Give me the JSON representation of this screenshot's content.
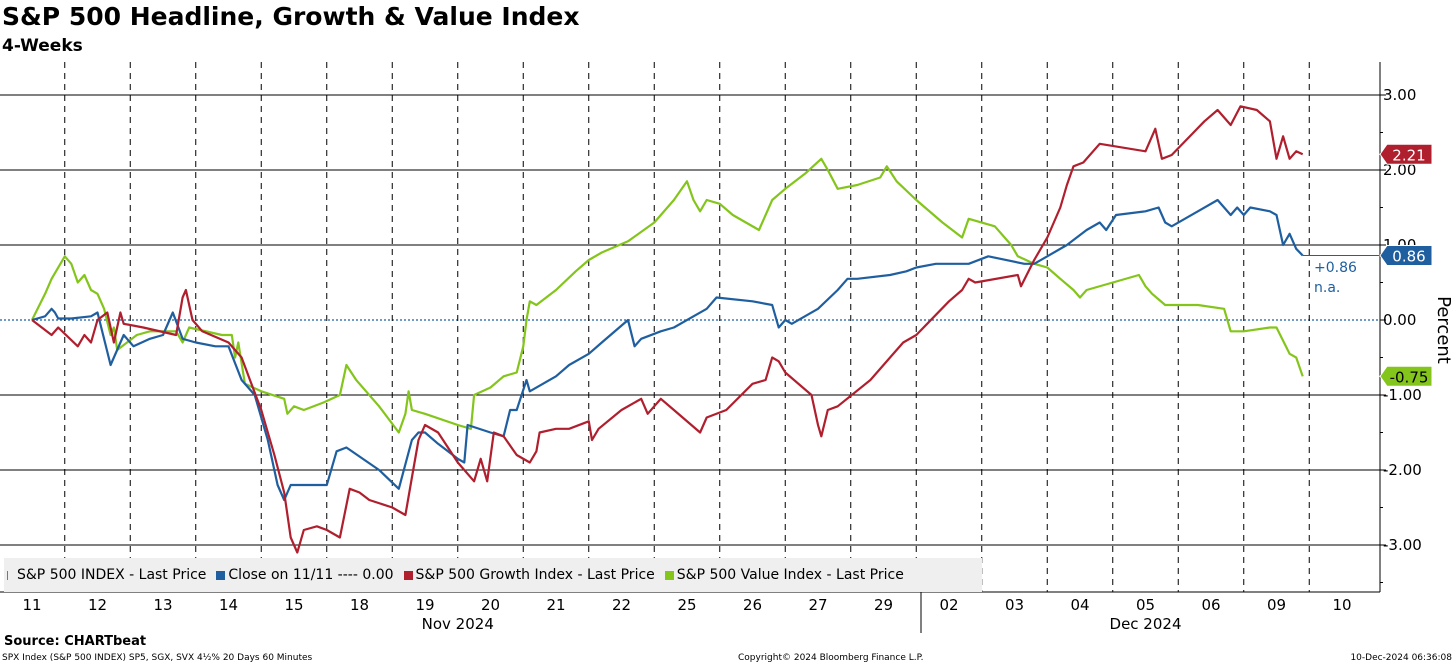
{
  "chart_data": {
    "type": "line",
    "title": "S&P 500 Headline, Growth & Value Index",
    "subtitle": "4-Weeks",
    "ylabel": "Percent",
    "ylim": [
      -3.5,
      3.4
    ],
    "yticks": [
      "3.00",
      "2.00",
      "1.00",
      "0.00",
      "-1.00",
      "-2.00",
      "-3.00"
    ],
    "ytick_values": [
      3,
      2,
      1,
      0,
      -1,
      -2,
      -3
    ],
    "x_days": [
      "11",
      "12",
      "13",
      "14",
      "15",
      "18",
      "19",
      "20",
      "21",
      "22",
      "25",
      "26",
      "27",
      "29",
      "02",
      "03",
      "04",
      "05",
      "06",
      "09",
      "10"
    ],
    "x_months": [
      {
        "label": "Nov 2024",
        "start": 0,
        "end": 13
      },
      {
        "label": "Dec 2024",
        "start": 14,
        "end": 20
      }
    ],
    "series": [
      {
        "name": "S&P 500 INDEX",
        "color": "#1f5fa0",
        "last": "0.86",
        "points": [
          [
            0,
            0
          ],
          [
            0.2,
            0.05
          ],
          [
            0.3,
            0.15
          ],
          [
            0.35,
            0.1
          ],
          [
            0.4,
            0.02
          ],
          [
            0.6,
            0.02
          ],
          [
            0.9,
            0.05
          ],
          [
            1,
            0.1
          ],
          [
            1.2,
            -0.6
          ],
          [
            1.4,
            -0.2
          ],
          [
            1.55,
            -0.35
          ],
          [
            1.8,
            -0.25
          ],
          [
            2,
            -0.2
          ],
          [
            2.15,
            0.1
          ],
          [
            2.3,
            -0.25
          ],
          [
            2.5,
            -0.3
          ],
          [
            2.8,
            -0.35
          ],
          [
            3,
            -0.35
          ],
          [
            3.2,
            -0.8
          ],
          [
            3.4,
            -1
          ],
          [
            3.6,
            -1.6
          ],
          [
            3.75,
            -2.2
          ],
          [
            3.85,
            -2.4
          ],
          [
            3.95,
            -2.2
          ],
          [
            4.5,
            -2.2
          ],
          [
            4.65,
            -1.75
          ],
          [
            4.8,
            -1.7
          ],
          [
            5.3,
            -2
          ],
          [
            5.6,
            -2.25
          ],
          [
            5.8,
            -1.6
          ],
          [
            5.9,
            -1.5
          ],
          [
            6,
            -1.5
          ],
          [
            6.2,
            -1.65
          ],
          [
            6.5,
            -1.85
          ],
          [
            6.6,
            -1.9
          ],
          [
            6.65,
            -1.4
          ],
          [
            7,
            -1.5
          ],
          [
            7.2,
            -1.55
          ],
          [
            7.3,
            -1.2
          ],
          [
            7.4,
            -1.2
          ],
          [
            7.55,
            -0.8
          ],
          [
            7.6,
            -0.95
          ],
          [
            7.8,
            -0.85
          ],
          [
            8,
            -0.75
          ],
          [
            8.2,
            -0.6
          ],
          [
            8.5,
            -0.45
          ],
          [
            8.7,
            -0.3
          ],
          [
            9.1,
            0
          ],
          [
            9.2,
            -0.35
          ],
          [
            9.3,
            -0.25
          ],
          [
            9.6,
            -0.15
          ],
          [
            9.8,
            -0.1
          ],
          [
            10.1,
            0.05
          ],
          [
            10.3,
            0.15
          ],
          [
            10.45,
            0.3
          ],
          [
            11,
            0.25
          ],
          [
            11.3,
            0.2
          ],
          [
            11.4,
            -0.1
          ],
          [
            11.5,
            0
          ],
          [
            11.6,
            -0.05
          ],
          [
            12,
            0.15
          ],
          [
            12.3,
            0.4
          ],
          [
            12.45,
            0.55
          ],
          [
            12.6,
            0.55
          ],
          [
            13.1,
            0.6
          ],
          [
            13.35,
            0.65
          ],
          [
            13.5,
            0.7
          ],
          [
            13.8,
            0.75
          ],
          [
            14.3,
            0.75
          ],
          [
            14.6,
            0.85
          ],
          [
            15.15,
            0.75
          ],
          [
            15.3,
            0.75
          ],
          [
            15.5,
            0.85
          ],
          [
            15.8,
            1
          ],
          [
            16.1,
            1.2
          ],
          [
            16.3,
            1.3
          ],
          [
            16.4,
            1.2
          ],
          [
            16.55,
            1.4
          ],
          [
            17,
            1.45
          ],
          [
            17.2,
            1.5
          ],
          [
            17.3,
            1.3
          ],
          [
            17.4,
            1.25
          ],
          [
            17.8,
            1.45
          ],
          [
            18.1,
            1.6
          ],
          [
            18.3,
            1.4
          ],
          [
            18.4,
            1.5
          ],
          [
            18.5,
            1.4
          ],
          [
            18.6,
            1.5
          ],
          [
            18.9,
            1.45
          ],
          [
            19,
            1.4
          ],
          [
            19.1,
            1
          ],
          [
            19.2,
            1.15
          ],
          [
            19.3,
            0.95
          ],
          [
            19.4,
            0.86
          ]
        ]
      },
      {
        "name": "Close on 11/11 ---- 0.00",
        "color": "#1f5fa0",
        "last": "n.a."
      },
      {
        "name": "S&P 500 Growth Index",
        "color": "#b01f2e",
        "last": "2.21",
        "points": [
          [
            0,
            0
          ],
          [
            0.3,
            -0.2
          ],
          [
            0.4,
            -0.1
          ],
          [
            0.7,
            -0.35
          ],
          [
            0.8,
            -0.2
          ],
          [
            0.9,
            -0.3
          ],
          [
            1,
            0
          ],
          [
            1.15,
            0.1
          ],
          [
            1.25,
            -0.3
          ],
          [
            1.35,
            0.1
          ],
          [
            1.4,
            -0.05
          ],
          [
            1.7,
            -0.1
          ],
          [
            2.2,
            -0.2
          ],
          [
            2.3,
            0.3
          ],
          [
            2.35,
            0.4
          ],
          [
            2.45,
            0
          ],
          [
            2.6,
            -0.15
          ],
          [
            3,
            -0.3
          ],
          [
            3.2,
            -0.5
          ],
          [
            3.35,
            -0.85
          ],
          [
            3.5,
            -1.2
          ],
          [
            3.7,
            -1.8
          ],
          [
            3.85,
            -2.3
          ],
          [
            3.95,
            -2.9
          ],
          [
            4.05,
            -3.1
          ],
          [
            4.15,
            -2.8
          ],
          [
            4.35,
            -2.75
          ],
          [
            4.5,
            -2.8
          ],
          [
            4.7,
            -2.9
          ],
          [
            4.85,
            -2.25
          ],
          [
            5,
            -2.3
          ],
          [
            5.15,
            -2.4
          ],
          [
            5.5,
            -2.5
          ],
          [
            5.7,
            -2.6
          ],
          [
            5.8,
            -2.1
          ],
          [
            5.9,
            -1.6
          ],
          [
            6,
            -1.4
          ],
          [
            6.2,
            -1.5
          ],
          [
            6.5,
            -1.9
          ],
          [
            6.75,
            -2.15
          ],
          [
            6.85,
            -1.85
          ],
          [
            6.95,
            -2.15
          ],
          [
            7.05,
            -1.5
          ],
          [
            7.2,
            -1.55
          ],
          [
            7.4,
            -1.8
          ],
          [
            7.6,
            -1.9
          ],
          [
            7.7,
            -1.75
          ],
          [
            7.75,
            -1.5
          ],
          [
            8,
            -1.45
          ],
          [
            8.2,
            -1.45
          ],
          [
            8.5,
            -1.35
          ],
          [
            8.55,
            -1.6
          ],
          [
            8.65,
            -1.45
          ],
          [
            9,
            -1.2
          ],
          [
            9.3,
            -1.05
          ],
          [
            9.4,
            -1.25
          ],
          [
            9.6,
            -1.05
          ],
          [
            9.8,
            -1.2
          ],
          [
            10.2,
            -1.5
          ],
          [
            10.3,
            -1.3
          ],
          [
            10.6,
            -1.2
          ],
          [
            11,
            -0.85
          ],
          [
            11.2,
            -0.8
          ],
          [
            11.3,
            -0.5
          ],
          [
            11.4,
            -0.55
          ],
          [
            11.5,
            -0.7
          ],
          [
            11.9,
            -1
          ],
          [
            12,
            -1.4
          ],
          [
            12.05,
            -1.55
          ],
          [
            12.15,
            -1.2
          ],
          [
            12.3,
            -1.15
          ],
          [
            12.8,
            -0.8
          ],
          [
            13,
            -0.6
          ],
          [
            13.3,
            -0.3
          ],
          [
            13.5,
            -0.2
          ],
          [
            14,
            0.25
          ],
          [
            14.2,
            0.4
          ],
          [
            14.3,
            0.55
          ],
          [
            14.4,
            0.5
          ],
          [
            15.05,
            0.6
          ],
          [
            15.1,
            0.45
          ],
          [
            15.3,
            0.8
          ],
          [
            15.5,
            1.1
          ],
          [
            15.7,
            1.5
          ],
          [
            15.8,
            1.8
          ],
          [
            15.9,
            2.05
          ],
          [
            16.05,
            2.1
          ],
          [
            16.3,
            2.35
          ],
          [
            17,
            2.25
          ],
          [
            17.15,
            2.55
          ],
          [
            17.25,
            2.15
          ],
          [
            17.4,
            2.2
          ],
          [
            17.9,
            2.65
          ],
          [
            18.1,
            2.8
          ],
          [
            18.3,
            2.6
          ],
          [
            18.45,
            2.85
          ],
          [
            18.7,
            2.8
          ],
          [
            18.9,
            2.65
          ],
          [
            19,
            2.15
          ],
          [
            19.1,
            2.45
          ],
          [
            19.2,
            2.15
          ],
          [
            19.3,
            2.25
          ],
          [
            19.4,
            2.21
          ]
        ]
      },
      {
        "name": "S&P 500 Value Index",
        "color": "#84c51b",
        "last": "-0.75",
        "points": [
          [
            0,
            0
          ],
          [
            0.2,
            0.35
          ],
          [
            0.3,
            0.55
          ],
          [
            0.5,
            0.85
          ],
          [
            0.6,
            0.75
          ],
          [
            0.7,
            0.5
          ],
          [
            0.8,
            0.6
          ],
          [
            0.9,
            0.4
          ],
          [
            1,
            0.35
          ],
          [
            1.1,
            0.15
          ],
          [
            1.2,
            -0.2
          ],
          [
            1.25,
            -0.1
          ],
          [
            1.3,
            -0.4
          ],
          [
            1.6,
            -0.2
          ],
          [
            1.8,
            -0.15
          ],
          [
            2.2,
            -0.15
          ],
          [
            2.3,
            -0.3
          ],
          [
            2.4,
            -0.1
          ],
          [
            2.9,
            -0.2
          ],
          [
            3.05,
            -0.2
          ],
          [
            3.1,
            -0.5
          ],
          [
            3.15,
            -0.3
          ],
          [
            3.25,
            -0.85
          ],
          [
            3.5,
            -0.95
          ],
          [
            3.85,
            -1.05
          ],
          [
            3.9,
            -1.25
          ],
          [
            4,
            -1.15
          ],
          [
            4.15,
            -1.2
          ],
          [
            4.45,
            -1.1
          ],
          [
            4.7,
            -1
          ],
          [
            4.8,
            -0.6
          ],
          [
            4.95,
            -0.8
          ],
          [
            5.3,
            -1.15
          ],
          [
            5.6,
            -1.5
          ],
          [
            5.7,
            -1.25
          ],
          [
            5.75,
            -0.95
          ],
          [
            5.8,
            -1.2
          ],
          [
            6,
            -1.25
          ],
          [
            6.5,
            -1.4
          ],
          [
            6.7,
            -1.45
          ],
          [
            6.75,
            -1
          ],
          [
            7,
            -0.9
          ],
          [
            7.2,
            -0.75
          ],
          [
            7.4,
            -0.7
          ],
          [
            7.5,
            -0.35
          ],
          [
            7.55,
            0
          ],
          [
            7.6,
            0.25
          ],
          [
            7.7,
            0.2
          ],
          [
            8,
            0.4
          ],
          [
            8.3,
            0.65
          ],
          [
            8.5,
            0.8
          ],
          [
            8.7,
            0.9
          ],
          [
            9.1,
            1.05
          ],
          [
            9.5,
            1.3
          ],
          [
            9.8,
            1.6
          ],
          [
            10,
            1.85
          ],
          [
            10.1,
            1.6
          ],
          [
            10.2,
            1.45
          ],
          [
            10.3,
            1.6
          ],
          [
            10.5,
            1.55
          ],
          [
            10.7,
            1.4
          ],
          [
            11.1,
            1.2
          ],
          [
            11.3,
            1.6
          ],
          [
            11.5,
            1.75
          ],
          [
            11.8,
            1.95
          ],
          [
            12.05,
            2.15
          ],
          [
            12.15,
            2
          ],
          [
            12.3,
            1.75
          ],
          [
            12.6,
            1.8
          ],
          [
            12.95,
            1.9
          ],
          [
            13.05,
            2.05
          ],
          [
            13.2,
            1.85
          ],
          [
            13.5,
            1.6
          ],
          [
            13.9,
            1.3
          ],
          [
            14.2,
            1.1
          ],
          [
            14.3,
            1.35
          ],
          [
            14.7,
            1.25
          ],
          [
            14.95,
            1
          ],
          [
            15.05,
            0.85
          ],
          [
            15.3,
            0.75
          ],
          [
            15.5,
            0.7
          ],
          [
            15.7,
            0.55
          ],
          [
            15.9,
            0.4
          ],
          [
            16,
            0.3
          ],
          [
            16.1,
            0.4
          ],
          [
            16.5,
            0.5
          ],
          [
            16.9,
            0.6
          ],
          [
            17,
            0.45
          ],
          [
            17.1,
            0.35
          ],
          [
            17.3,
            0.2
          ],
          [
            17.8,
            0.2
          ],
          [
            18.2,
            0.15
          ],
          [
            18.3,
            -0.15
          ],
          [
            18.5,
            -0.15
          ],
          [
            18.9,
            -0.1
          ],
          [
            19,
            -0.1
          ],
          [
            19.2,
            -0.45
          ],
          [
            19.3,
            -0.5
          ],
          [
            19.4,
            -0.75
          ]
        ]
      }
    ]
  },
  "annotations": {
    "blue_change": "+0.86",
    "blue_na": "n.a."
  },
  "legend": [
    {
      "label": "S&P 500 INDEX - Last Price",
      "color": "#1f5fa0",
      "style": "hollow"
    },
    {
      "label": "Close on 11/11 ---- 0.00",
      "color": "#1f5fa0",
      "style": "square"
    },
    {
      "label": "S&P 500 Growth Index - Last Price",
      "color": "#b01f2e",
      "style": "square"
    },
    {
      "label": "S&P 500 Value Index - Last Price",
      "color": "#84c51b",
      "style": "square"
    }
  ],
  "footer": {
    "source": "Source: CHARTbeat",
    "left": "SPX Index (S&P 500 INDEX) SP5, SGX, SVX 4½% 20 Days 60 Minutes",
    "center": "Copyright© 2024 Bloomberg Finance L.P.",
    "right": "10-Dec-2024 06:36:08"
  }
}
